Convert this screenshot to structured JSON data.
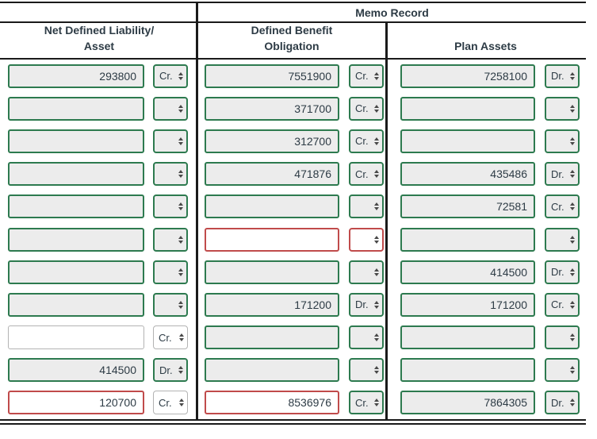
{
  "memo_header": "Memo Record",
  "column_headers": {
    "left": [
      "Net Defined Liability/",
      "Asset"
    ],
    "middle": [
      "Defined Benefit",
      "Obligation"
    ],
    "right": [
      "Plan Assets"
    ]
  },
  "rows": [
    {
      "cells": [
        {
          "value": "293800",
          "unit": "Cr.",
          "value_state": "correct",
          "unit_state": "correct"
        },
        {
          "value": "7551900",
          "unit": "Cr.",
          "value_state": "correct",
          "unit_state": "correct"
        },
        {
          "value": "7258100",
          "unit": "Dr.",
          "value_state": "correct",
          "unit_state": "correct"
        }
      ]
    },
    {
      "cells": [
        {
          "value": "",
          "unit": "",
          "value_state": "correct",
          "unit_state": "correct"
        },
        {
          "value": "371700",
          "unit": "Cr.",
          "value_state": "correct",
          "unit_state": "correct"
        },
        {
          "value": "",
          "unit": "",
          "value_state": "correct",
          "unit_state": "correct"
        }
      ]
    },
    {
      "cells": [
        {
          "value": "",
          "unit": "",
          "value_state": "correct",
          "unit_state": "correct"
        },
        {
          "value": "312700",
          "unit": "Cr.",
          "value_state": "correct",
          "unit_state": "correct"
        },
        {
          "value": "",
          "unit": "",
          "value_state": "correct",
          "unit_state": "correct"
        }
      ]
    },
    {
      "cells": [
        {
          "value": "",
          "unit": "",
          "value_state": "correct",
          "unit_state": "correct"
        },
        {
          "value": "471876",
          "unit": "Cr.",
          "value_state": "correct",
          "unit_state": "correct"
        },
        {
          "value": "435486",
          "unit": "Dr.",
          "value_state": "correct",
          "unit_state": "correct"
        }
      ]
    },
    {
      "cells": [
        {
          "value": "",
          "unit": "",
          "value_state": "correct",
          "unit_state": "correct"
        },
        {
          "value": "",
          "unit": "",
          "value_state": "correct",
          "unit_state": "correct"
        },
        {
          "value": "72581",
          "unit": "Cr.",
          "value_state": "correct",
          "unit_state": "correct"
        }
      ]
    },
    {
      "cells": [
        {
          "value": "",
          "unit": "",
          "value_state": "correct",
          "unit_state": "correct"
        },
        {
          "value": "",
          "unit": "",
          "value_state": "incorrect",
          "unit_state": "incorrect"
        },
        {
          "value": "",
          "unit": "",
          "value_state": "correct",
          "unit_state": "correct"
        }
      ]
    },
    {
      "cells": [
        {
          "value": "",
          "unit": "",
          "value_state": "correct",
          "unit_state": "correct"
        },
        {
          "value": "",
          "unit": "",
          "value_state": "correct",
          "unit_state": "correct"
        },
        {
          "value": "414500",
          "unit": "Dr.",
          "value_state": "correct",
          "unit_state": "correct"
        }
      ]
    },
    {
      "cells": [
        {
          "value": "",
          "unit": "",
          "value_state": "correct",
          "unit_state": "correct"
        },
        {
          "value": "171200",
          "unit": "Dr.",
          "value_state": "correct",
          "unit_state": "correct"
        },
        {
          "value": "171200",
          "unit": "Cr.",
          "value_state": "correct",
          "unit_state": "correct"
        }
      ]
    },
    {
      "cells": [
        {
          "value": "",
          "unit": "Cr.",
          "value_state": "neutral",
          "unit_state": "neutral"
        },
        {
          "value": "",
          "unit": "",
          "value_state": "correct",
          "unit_state": "correct"
        },
        {
          "value": "",
          "unit": "",
          "value_state": "correct",
          "unit_state": "correct"
        }
      ]
    },
    {
      "cells": [
        {
          "value": "414500",
          "unit": "Dr.",
          "value_state": "correct",
          "unit_state": "correct"
        },
        {
          "value": "",
          "unit": "",
          "value_state": "correct",
          "unit_state": "correct"
        },
        {
          "value": "",
          "unit": "",
          "value_state": "correct",
          "unit_state": "correct"
        }
      ]
    },
    {
      "cells": [
        {
          "value": "120700",
          "unit": "Cr.",
          "value_state": "incorrect",
          "unit_state": "neutral"
        },
        {
          "value": "8536976",
          "unit": "Cr.",
          "value_state": "incorrect",
          "unit_state": "correct"
        },
        {
          "value": "7864305",
          "unit": "Dr.",
          "value_state": "correct",
          "unit_state": "correct"
        }
      ]
    }
  ],
  "colors": {
    "correct_border": "#2d7a4f",
    "incorrect_border": "#c04b4b",
    "neutral_border": "#b3b3b3",
    "filled_background": "#ececec",
    "text": "#2d3b45",
    "rule": "#1a1a1a"
  }
}
